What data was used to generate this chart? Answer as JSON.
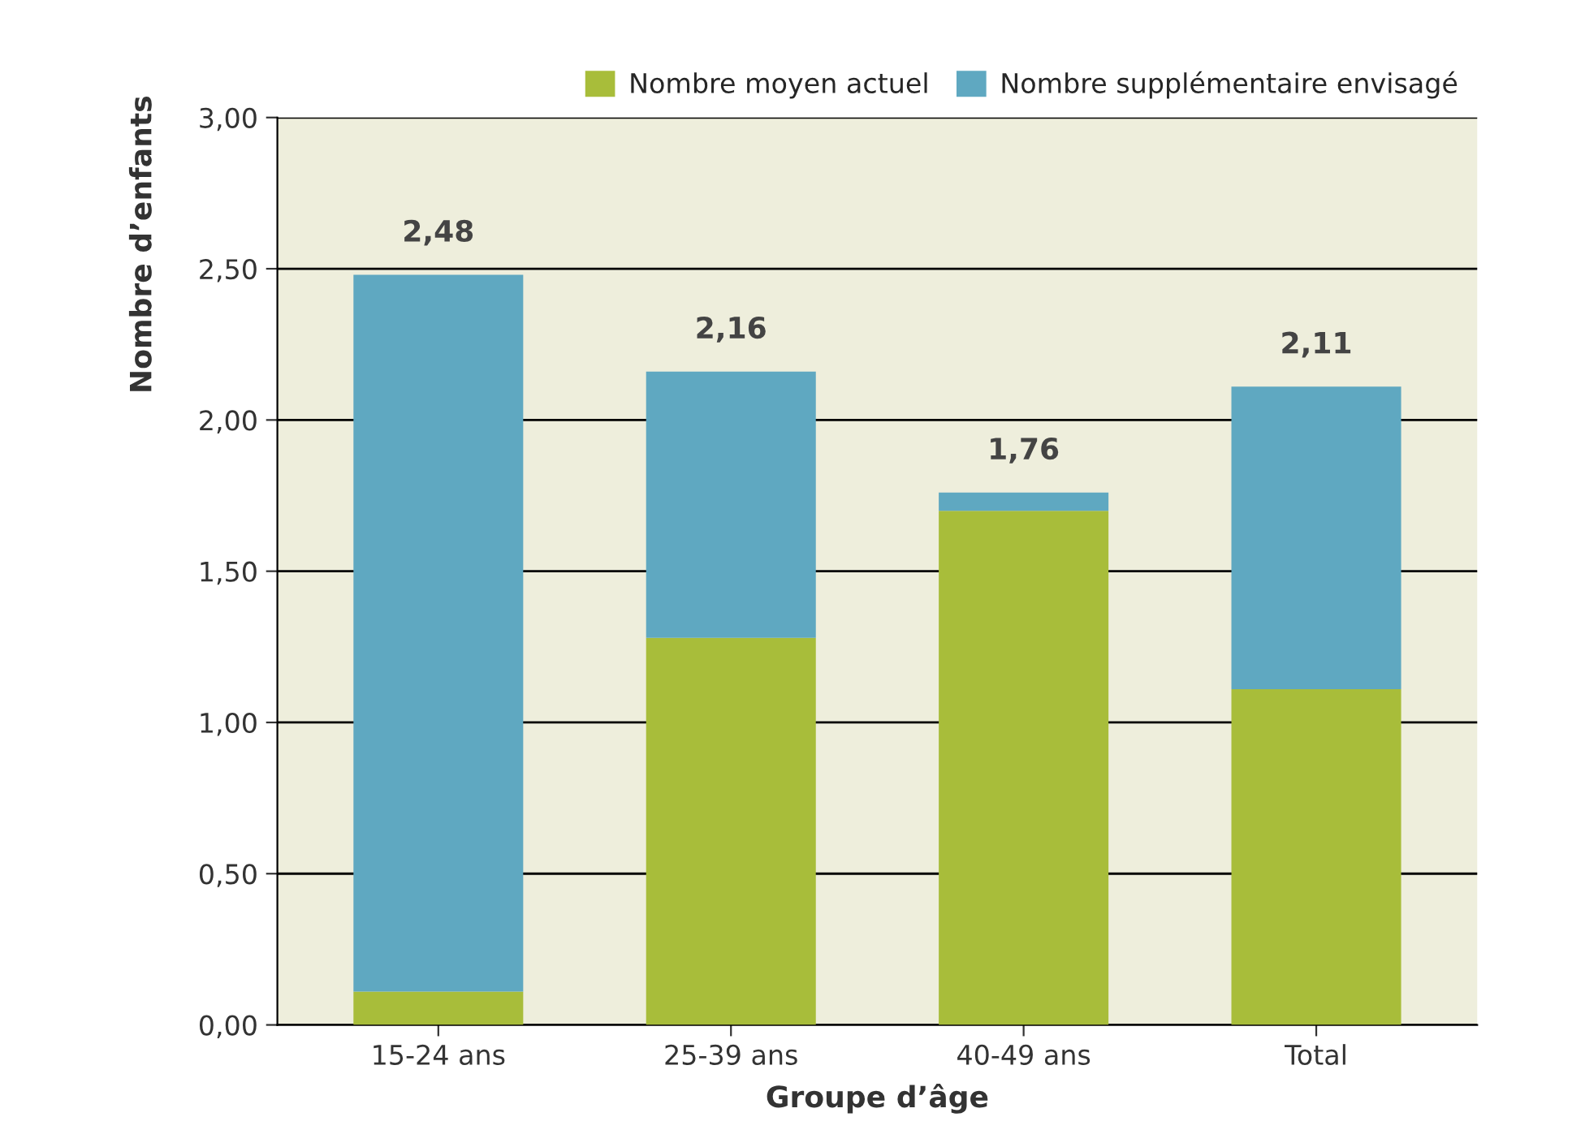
{
  "chart_data": {
    "type": "bar",
    "stacked": true,
    "xlabel": "Groupe d’âge",
    "ylabel": "Nombre d’enfants",
    "categories": [
      "15-24 ans",
      "25-39 ans",
      "40-49 ans",
      "Total"
    ],
    "series": [
      {
        "name": "Nombre moyen actuel",
        "color": "#a8bd3a",
        "values": [
          0.11,
          1.28,
          1.7,
          1.11
        ]
      },
      {
        "name": "Nombre supplémentaire envisagé",
        "color": "#5fa8c1",
        "values": [
          2.37,
          0.88,
          0.06,
          1.0
        ]
      }
    ],
    "totals": [
      "2,48",
      "2,16",
      "1,76",
      "2,11"
    ],
    "ylim": [
      0,
      3
    ],
    "yticks": [
      {
        "value": 0,
        "label": "0,00"
      },
      {
        "value": 0.5,
        "label": "0,50"
      },
      {
        "value": 1,
        "label": "1,00"
      },
      {
        "value": 1.5,
        "label": "1,50"
      },
      {
        "value": 2,
        "label": "2,00"
      },
      {
        "value": 2.5,
        "label": "2,50"
      },
      {
        "value": 3,
        "label": "3,00"
      }
    ],
    "grid": "y",
    "legend": "top right"
  }
}
